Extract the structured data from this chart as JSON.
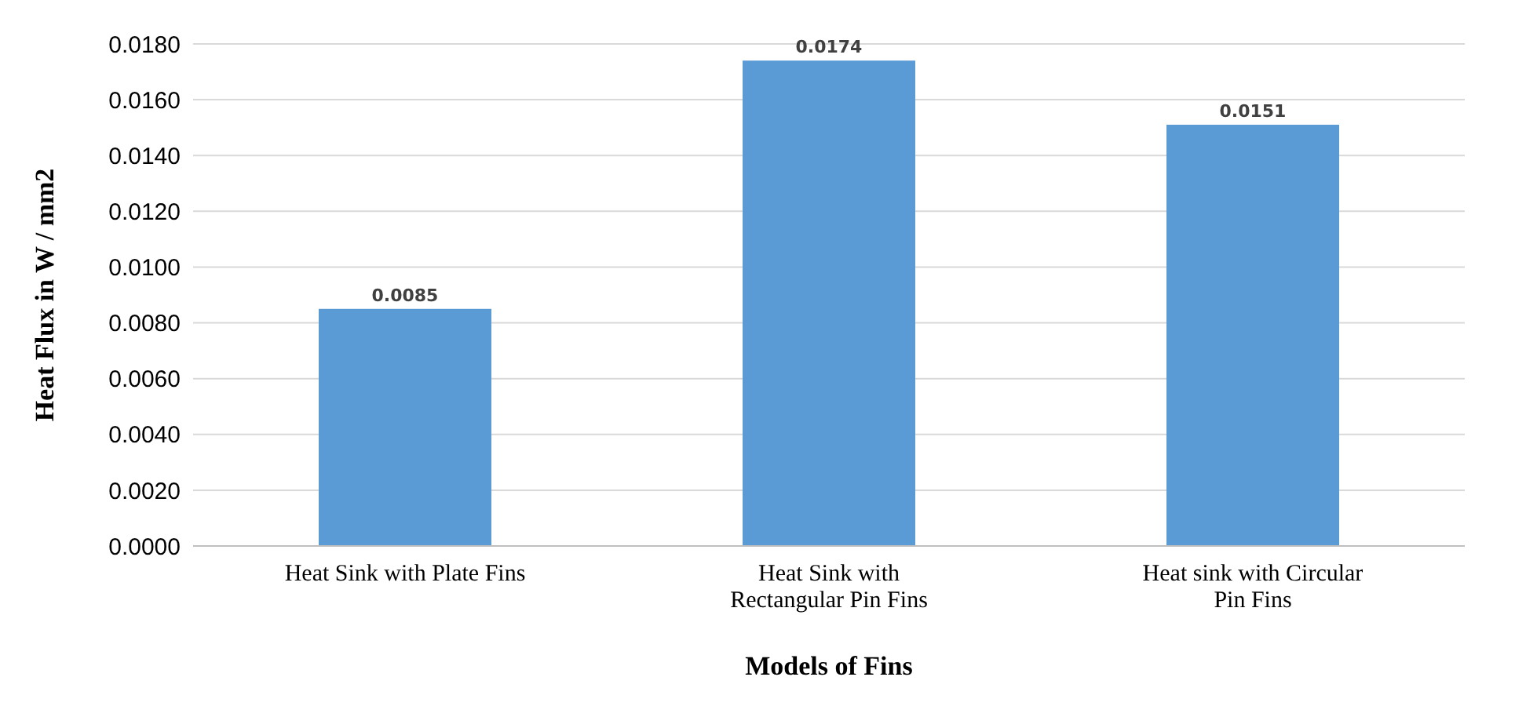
{
  "chart_data": {
    "type": "bar",
    "xlabel": "Models of Fins",
    "ylabel": "Heat Flux in W / mm2",
    "categories": [
      "Heat Sink with Plate Fins",
      "Heat Sink with Rectangular Pin Fins",
      "Heat sink with Circular Pin Fins"
    ],
    "values": [
      0.0085,
      0.0174,
      0.0151
    ],
    "data_labels": true,
    "color": "#5b9bd5",
    "ylim": [
      0,
      0.018
    ],
    "yticks": [
      {
        "value": 0,
        "label": "0.0000"
      },
      {
        "value": 0.002,
        "label": "0.0020"
      },
      {
        "value": 0.004,
        "label": "0.0040"
      },
      {
        "value": 0.006,
        "label": "0.0060"
      },
      {
        "value": 0.008,
        "label": "0.0080"
      },
      {
        "value": 0.01,
        "label": "0.0100"
      },
      {
        "value": 0.012,
        "label": "0.0120"
      },
      {
        "value": 0.014,
        "label": "0.0140"
      },
      {
        "value": 0.016,
        "label": "0.0160"
      },
      {
        "value": 0.018,
        "label": "0.0180"
      }
    ],
    "grid": "y",
    "legend": false
  }
}
